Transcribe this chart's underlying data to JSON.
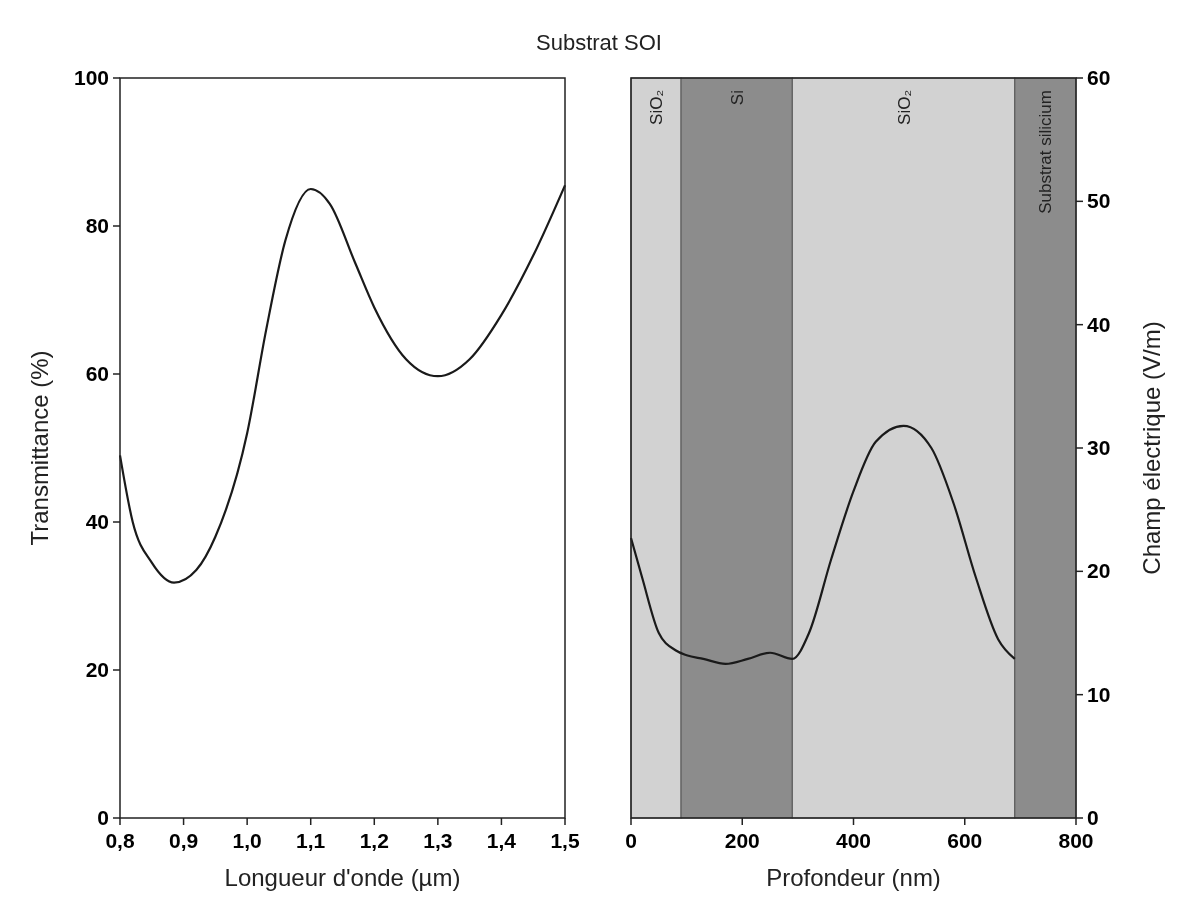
{
  "chart_data": [
    {
      "type": "line",
      "title": "Substrat SOI",
      "xlabel": "Longueur d'onde (µm)",
      "ylabel": "Transmittance (%)",
      "x": [
        0.8,
        0.82,
        0.85,
        0.885,
        0.92,
        0.95,
        1.0,
        1.03,
        1.06,
        1.1,
        1.13,
        1.17,
        1.2,
        1.25,
        1.3,
        1.35,
        1.4,
        1.45,
        1.5
      ],
      "series": [
        {
          "color": "#1a1a1a",
          "values": [
            49,
            40,
            34.5,
            31.8,
            33.5,
            38,
            52,
            66,
            78,
            85,
            83,
            75,
            69,
            62,
            59.7,
            62,
            68,
            76,
            85.5
          ]
        }
      ],
      "xlim": [
        0.8,
        1.5
      ],
      "ylim": [
        0,
        100
      ],
      "xticks": [
        {
          "value": 0.8,
          "label": "0,8"
        },
        {
          "value": 0.9,
          "label": "0,9"
        },
        {
          "value": 1.0,
          "label": "1,0"
        },
        {
          "value": 1.1,
          "label": "1,1"
        },
        {
          "value": 1.2,
          "label": "1,2"
        },
        {
          "value": 1.3,
          "label": "1,3"
        },
        {
          "value": 1.4,
          "label": "1,4"
        },
        {
          "value": 1.5,
          "label": "1,5"
        }
      ],
      "yticks": [
        0,
        20,
        40,
        60,
        80,
        100
      ],
      "grid": false,
      "marker": "none",
      "line_style": "solid"
    },
    {
      "type": "line",
      "xlabel": "Profondeur (nm)",
      "y2label": "Champ électrique (V/m)",
      "x": [
        0,
        20,
        50,
        80,
        100,
        130,
        170,
        210,
        250,
        290,
        320,
        360,
        400,
        440,
        490,
        540,
        580,
        620,
        660,
        690
      ],
      "series": [
        {
          "color": "#1a1a1a",
          "axis": "y2",
          "values": [
            22.7,
            19.5,
            15,
            13.6,
            13.2,
            12.9,
            12.5,
            12.9,
            13.4,
            12.9,
            15,
            21,
            26.5,
            30.5,
            31.8,
            30,
            25.5,
            19.5,
            14.5,
            12.9
          ]
        }
      ],
      "xlim": [
        0,
        800
      ],
      "y2lim": [
        0,
        60
      ],
      "xticks": [
        0,
        200,
        400,
        600,
        800
      ],
      "y2ticks": [
        0,
        10,
        20,
        30,
        40,
        50,
        60
      ],
      "bands": [
        {
          "axis": "x",
          "from": 0,
          "to": 90,
          "label": "SiO₂",
          "color": "#d2d2d2"
        },
        {
          "axis": "x",
          "from": 90,
          "to": 290,
          "label": "Si",
          "color": "#8c8c8c"
        },
        {
          "axis": "x",
          "from": 290,
          "to": 690,
          "label": "SiO₂",
          "color": "#d2d2d2"
        },
        {
          "axis": "x",
          "from": 690,
          "to": 800,
          "label": "Substrat silicium",
          "color": "#8c8c8c"
        }
      ],
      "grid": false,
      "marker": "none",
      "line_style": "solid"
    }
  ]
}
